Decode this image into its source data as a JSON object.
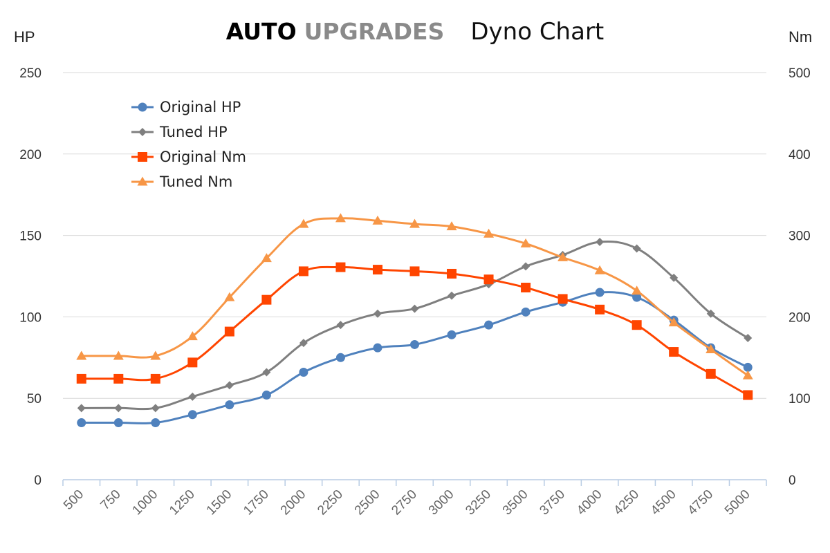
{
  "chart_data": {
    "type": "line",
    "title": {
      "brand_part1": "AUTO",
      "brand_part2": "UPGRADES",
      "main": "Dyno Chart"
    },
    "y_left_label": "HP",
    "y_right_label": "Nm",
    "y_left_range": [
      0,
      250
    ],
    "y_right_range": [
      0,
      500
    ],
    "y_left_ticks": [
      "0",
      "50",
      "100",
      "150",
      "200",
      "250"
    ],
    "y_right_ticks": [
      "0",
      "100",
      "200",
      "300",
      "400",
      "500"
    ],
    "categories": [
      "500",
      "750",
      "1000",
      "1250",
      "1500",
      "1750",
      "2000",
      "2250",
      "2500",
      "2750",
      "3000",
      "3250",
      "3500",
      "3750",
      "4000",
      "4250",
      "4500",
      "4750",
      "5000"
    ],
    "grid": "horizontal",
    "legend_position": "top-left",
    "series": [
      {
        "name": "Original HP",
        "axis": "left",
        "color": "#4f81bd",
        "marker": "circle",
        "values": [
          35,
          35,
          35,
          40,
          46,
          52,
          66,
          75,
          81,
          83,
          89,
          95,
          103,
          109,
          115,
          112,
          98,
          81,
          69
        ]
      },
      {
        "name": "Tuned HP",
        "axis": "left",
        "color": "#7f7f7f",
        "marker": "diamond",
        "values": [
          44,
          44,
          44,
          51,
          58,
          66,
          84,
          95,
          102,
          105,
          113,
          120,
          131,
          138,
          146,
          142,
          124,
          102,
          87
        ]
      },
      {
        "name": "Original Nm",
        "axis": "right",
        "color": "#ff4500",
        "marker": "square",
        "values": [
          124,
          124,
          124,
          144,
          182,
          221,
          256,
          261,
          258,
          256,
          253,
          246,
          236,
          222,
          209,
          190,
          157,
          130,
          104
        ]
      },
      {
        "name": "Tuned Nm",
        "axis": "right",
        "color": "#f79646",
        "marker": "triangle",
        "values": [
          152,
          152,
          152,
          176,
          224,
          272,
          314,
          321,
          318,
          314,
          311,
          302,
          290,
          273,
          257,
          232,
          193,
          160,
          128
        ]
      }
    ]
  }
}
